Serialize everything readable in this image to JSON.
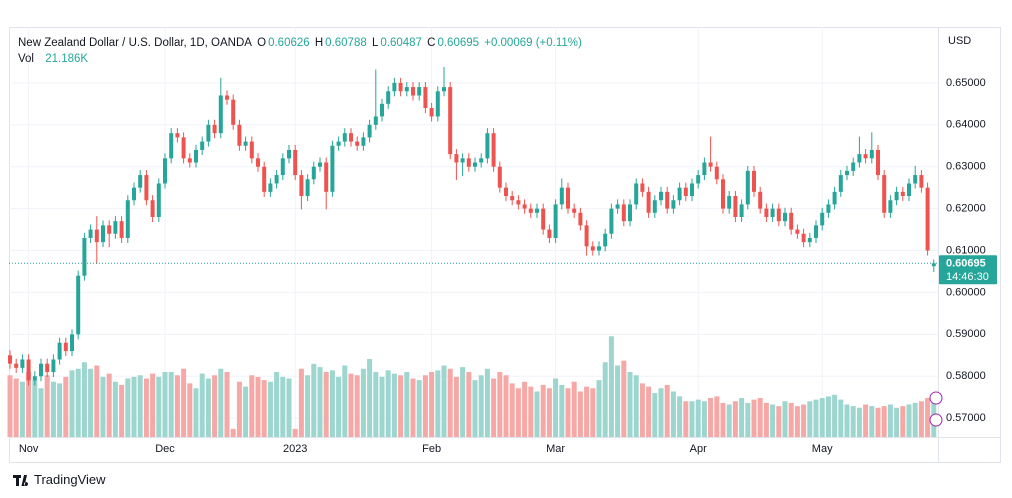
{
  "chart_data": {
    "type": "candlestick",
    "symbol": "New Zealand Dollar / U.S. Dollar, 1D, OANDA",
    "o_label": "O",
    "h_label": "H",
    "l_label": "L",
    "c_label": "C",
    "change": "+0.00069 (+0.11%)",
    "volume_name": "Vol",
    "volume_last_label": "21.186K",
    "currency": "USD",
    "countdown": "14:46:30",
    "brand": "TradingView",
    "up_color": "#26a69a",
    "down_color": "#ef5350",
    "volume_up_color": "#9dd5cf",
    "volume_down_color": "#f5a8a6",
    "ylim": [
      0.5655,
      0.6631
    ],
    "yticks": [
      {
        "value": 0.57,
        "label": "0.57000"
      },
      {
        "value": 0.58,
        "label": "0.58000"
      },
      {
        "value": 0.59,
        "label": "0.59000"
      },
      {
        "value": 0.6,
        "label": "0.60000"
      },
      {
        "value": 0.61,
        "label": "0.61000"
      },
      {
        "value": 0.62,
        "label": "0.62000"
      },
      {
        "value": 0.63,
        "label": "0.63000"
      },
      {
        "value": 0.64,
        "label": "0.64000"
      },
      {
        "value": 0.65,
        "label": "0.65000"
      }
    ],
    "xticks": [
      {
        "value": 3,
        "label": "Nov"
      },
      {
        "value": 25,
        "label": "Dec"
      },
      {
        "value": 46,
        "label": "2023"
      },
      {
        "value": 68,
        "label": "Feb"
      },
      {
        "value": 88,
        "label": "Mar"
      },
      {
        "value": 111,
        "label": "Apr"
      },
      {
        "value": 131,
        "label": "May"
      }
    ],
    "grid": true,
    "volume_ylim": [
      0,
      80
    ],
    "ohlc": [
      [
        0.585,
        0.5862,
        0.5818,
        0.583
      ],
      [
        0.583,
        0.5842,
        0.5808,
        0.582
      ],
      [
        0.582,
        0.5852,
        0.5808,
        0.584
      ],
      [
        0.584,
        0.5852,
        0.5778,
        0.579
      ],
      [
        0.579,
        0.5812,
        0.5778,
        0.58
      ],
      [
        0.58,
        0.5842,
        0.5788,
        0.583
      ],
      [
        0.583,
        0.5842,
        0.5798,
        0.581
      ],
      [
        0.581,
        0.5852,
        0.5798,
        0.584
      ],
      [
        0.584,
        0.5892,
        0.5828,
        0.588
      ],
      [
        0.588,
        0.5892,
        0.5848,
        0.586
      ],
      [
        0.586,
        0.5912,
        0.5848,
        0.59
      ],
      [
        0.59,
        0.6052,
        0.5888,
        0.604
      ],
      [
        0.604,
        0.6142,
        0.6028,
        0.613
      ],
      [
        0.613,
        0.6162,
        0.6118,
        0.615
      ],
      [
        0.615,
        0.6182,
        0.6068,
        0.612
      ],
      [
        0.612,
        0.6172,
        0.6108,
        0.616
      ],
      [
        0.616,
        0.6172,
        0.6108,
        0.614
      ],
      [
        0.614,
        0.6182,
        0.6128,
        0.617
      ],
      [
        0.617,
        0.6182,
        0.6118,
        0.613
      ],
      [
        0.613,
        0.6232,
        0.6118,
        0.622
      ],
      [
        0.622,
        0.6262,
        0.6208,
        0.625
      ],
      [
        0.625,
        0.6292,
        0.6238,
        0.628
      ],
      [
        0.628,
        0.6292,
        0.6208,
        0.622
      ],
      [
        0.622,
        0.6232,
        0.6168,
        0.618
      ],
      [
        0.618,
        0.6272,
        0.6168,
        0.626
      ],
      [
        0.626,
        0.6332,
        0.6248,
        0.632
      ],
      [
        0.632,
        0.6392,
        0.6308,
        0.638
      ],
      [
        0.638,
        0.6392,
        0.6358,
        0.637
      ],
      [
        0.637,
        0.6382,
        0.6308,
        0.632
      ],
      [
        0.632,
        0.6332,
        0.6298,
        0.631
      ],
      [
        0.631,
        0.6352,
        0.6298,
        0.634
      ],
      [
        0.634,
        0.6372,
        0.6328,
        0.636
      ],
      [
        0.636,
        0.6412,
        0.6348,
        0.64
      ],
      [
        0.64,
        0.6412,
        0.6368,
        0.638
      ],
      [
        0.638,
        0.6512,
        0.6368,
        0.647
      ],
      [
        0.647,
        0.6482,
        0.6448,
        0.646
      ],
      [
        0.646,
        0.6472,
        0.6388,
        0.64
      ],
      [
        0.64,
        0.6412,
        0.6338,
        0.635
      ],
      [
        0.635,
        0.6372,
        0.6338,
        0.636
      ],
      [
        0.636,
        0.6372,
        0.6308,
        0.632
      ],
      [
        0.632,
        0.6332,
        0.6288,
        0.63
      ],
      [
        0.63,
        0.6312,
        0.6228,
        0.624
      ],
      [
        0.624,
        0.6272,
        0.6228,
        0.626
      ],
      [
        0.626,
        0.6292,
        0.6248,
        0.628
      ],
      [
        0.628,
        0.6332,
        0.6268,
        0.632
      ],
      [
        0.632,
        0.6352,
        0.6308,
        0.634
      ],
      [
        0.634,
        0.6352,
        0.6268,
        0.628
      ],
      [
        0.628,
        0.6292,
        0.6198,
        0.623
      ],
      [
        0.623,
        0.6282,
        0.6218,
        0.627
      ],
      [
        0.627,
        0.6312,
        0.6258,
        0.63
      ],
      [
        0.63,
        0.6322,
        0.6288,
        0.631
      ],
      [
        0.631,
        0.6322,
        0.6198,
        0.624
      ],
      [
        0.624,
        0.6362,
        0.6228,
        0.635
      ],
      [
        0.635,
        0.6372,
        0.6338,
        0.636
      ],
      [
        0.636,
        0.6392,
        0.6348,
        0.638
      ],
      [
        0.638,
        0.6392,
        0.6348,
        0.636
      ],
      [
        0.636,
        0.6372,
        0.6338,
        0.635
      ],
      [
        0.635,
        0.6382,
        0.6338,
        0.637
      ],
      [
        0.637,
        0.6412,
        0.6358,
        0.64
      ],
      [
        0.64,
        0.6532,
        0.6388,
        0.642
      ],
      [
        0.642,
        0.6462,
        0.6408,
        0.645
      ],
      [
        0.645,
        0.6492,
        0.6438,
        0.648
      ],
      [
        0.648,
        0.6512,
        0.6468,
        0.65
      ],
      [
        0.65,
        0.6512,
        0.6468,
        0.648
      ],
      [
        0.648,
        0.6502,
        0.6468,
        0.649
      ],
      [
        0.649,
        0.6502,
        0.6458,
        0.647
      ],
      [
        0.647,
        0.6502,
        0.6458,
        0.649
      ],
      [
        0.649,
        0.6502,
        0.6428,
        0.644
      ],
      [
        0.644,
        0.6452,
        0.6408,
        0.642
      ],
      [
        0.642,
        0.6492,
        0.6408,
        0.648
      ],
      [
        0.648,
        0.6538,
        0.6468,
        0.649
      ],
      [
        0.649,
        0.6502,
        0.6318,
        0.633
      ],
      [
        0.633,
        0.6342,
        0.6268,
        0.631
      ],
      [
        0.631,
        0.6332,
        0.6278,
        0.632
      ],
      [
        0.632,
        0.6332,
        0.6288,
        0.63
      ],
      [
        0.63,
        0.6322,
        0.6288,
        0.631
      ],
      [
        0.631,
        0.6332,
        0.6298,
        0.632
      ],
      [
        0.632,
        0.6392,
        0.6308,
        0.638
      ],
      [
        0.638,
        0.6392,
        0.6288,
        0.63
      ],
      [
        0.63,
        0.6312,
        0.6238,
        0.625
      ],
      [
        0.625,
        0.6262,
        0.6218,
        0.623
      ],
      [
        0.623,
        0.6242,
        0.6208,
        0.622
      ],
      [
        0.622,
        0.6232,
        0.6198,
        0.621
      ],
      [
        0.621,
        0.6222,
        0.6188,
        0.62
      ],
      [
        0.62,
        0.6212,
        0.6178,
        0.619
      ],
      [
        0.619,
        0.6212,
        0.6178,
        0.62
      ],
      [
        0.62,
        0.6212,
        0.6138,
        0.615
      ],
      [
        0.615,
        0.6162,
        0.6118,
        0.613
      ],
      [
        0.613,
        0.6222,
        0.6118,
        0.621
      ],
      [
        0.621,
        0.6272,
        0.6198,
        0.625
      ],
      [
        0.625,
        0.6262,
        0.6188,
        0.62
      ],
      [
        0.62,
        0.6212,
        0.6178,
        0.619
      ],
      [
        0.619,
        0.6202,
        0.6148,
        0.616
      ],
      [
        0.616,
        0.6172,
        0.6088,
        0.611
      ],
      [
        0.611,
        0.6122,
        0.6088,
        0.61
      ],
      [
        0.61,
        0.6122,
        0.6088,
        0.611
      ],
      [
        0.611,
        0.6152,
        0.6098,
        0.614
      ],
      [
        0.614,
        0.6212,
        0.6128,
        0.62
      ],
      [
        0.62,
        0.6222,
        0.6188,
        0.621
      ],
      [
        0.621,
        0.6222,
        0.6158,
        0.617
      ],
      [
        0.617,
        0.6222,
        0.6158,
        0.621
      ],
      [
        0.621,
        0.6272,
        0.6198,
        0.626
      ],
      [
        0.626,
        0.6272,
        0.6228,
        0.624
      ],
      [
        0.624,
        0.6252,
        0.6178,
        0.619
      ],
      [
        0.619,
        0.6232,
        0.6178,
        0.622
      ],
      [
        0.622,
        0.6252,
        0.6208,
        0.624
      ],
      [
        0.624,
        0.6252,
        0.6188,
        0.62
      ],
      [
        0.62,
        0.6232,
        0.6188,
        0.622
      ],
      [
        0.622,
        0.6262,
        0.6208,
        0.625
      ],
      [
        0.625,
        0.6262,
        0.6218,
        0.623
      ],
      [
        0.623,
        0.6272,
        0.6218,
        0.626
      ],
      [
        0.626,
        0.6292,
        0.6248,
        0.628
      ],
      [
        0.628,
        0.6322,
        0.6268,
        0.631
      ],
      [
        0.631,
        0.6372,
        0.6288,
        0.63
      ],
      [
        0.63,
        0.6312,
        0.6258,
        0.627
      ],
      [
        0.627,
        0.6282,
        0.6188,
        0.62
      ],
      [
        0.62,
        0.6242,
        0.6188,
        0.623
      ],
      [
        0.623,
        0.6242,
        0.6168,
        0.618
      ],
      [
        0.618,
        0.6222,
        0.6168,
        0.621
      ],
      [
        0.621,
        0.6302,
        0.6198,
        0.629
      ],
      [
        0.629,
        0.6302,
        0.6228,
        0.624
      ],
      [
        0.624,
        0.6252,
        0.6188,
        0.62
      ],
      [
        0.62,
        0.6212,
        0.6168,
        0.618
      ],
      [
        0.618,
        0.6212,
        0.6168,
        0.62
      ],
      [
        0.62,
        0.6212,
        0.6158,
        0.617
      ],
      [
        0.617,
        0.6202,
        0.6158,
        0.619
      ],
      [
        0.619,
        0.6202,
        0.6138,
        0.615
      ],
      [
        0.615,
        0.6162,
        0.6128,
        0.614
      ],
      [
        0.614,
        0.6152,
        0.6108,
        0.612
      ],
      [
        0.612,
        0.6142,
        0.6108,
        0.613
      ],
      [
        0.613,
        0.6172,
        0.6118,
        0.616
      ],
      [
        0.616,
        0.6202,
        0.6148,
        0.619
      ],
      [
        0.619,
        0.6222,
        0.6178,
        0.621
      ],
      [
        0.621,
        0.6252,
        0.6198,
        0.624
      ],
      [
        0.624,
        0.6292,
        0.6228,
        0.628
      ],
      [
        0.628,
        0.6302,
        0.6268,
        0.629
      ],
      [
        0.629,
        0.6322,
        0.6278,
        0.631
      ],
      [
        0.631,
        0.6372,
        0.6298,
        0.633
      ],
      [
        0.633,
        0.6342,
        0.6308,
        0.632
      ],
      [
        0.632,
        0.6382,
        0.6308,
        0.634
      ],
      [
        0.634,
        0.6352,
        0.6268,
        0.628
      ],
      [
        0.628,
        0.6292,
        0.6178,
        0.619
      ],
      [
        0.619,
        0.6232,
        0.6178,
        0.622
      ],
      [
        0.622,
        0.6252,
        0.6208,
        0.624
      ],
      [
        0.624,
        0.6252,
        0.6218,
        0.623
      ],
      [
        0.623,
        0.6272,
        0.6218,
        0.626
      ],
      [
        0.626,
        0.6302,
        0.6248,
        0.628
      ],
      [
        0.628,
        0.6292,
        0.6238,
        0.625
      ],
      [
        0.625,
        0.6262,
        0.6088,
        0.61
      ],
      [
        0.60626,
        0.60788,
        0.60487,
        0.60695
      ]
    ],
    "volume": [
      38,
      36,
      34,
      40,
      35,
      30,
      38,
      34,
      33,
      37,
      41,
      42,
      46,
      42,
      44,
      37,
      39,
      34,
      32,
      36,
      37,
      38,
      36,
      39,
      37,
      40,
      40,
      38,
      42,
      33,
      30,
      39,
      36,
      38,
      42,
      40,
      5,
      34,
      31,
      38,
      37,
      35,
      34,
      40,
      37,
      36,
      5,
      42,
      38,
      45,
      43,
      40,
      41,
      37,
      44,
      39,
      38,
      42,
      48,
      40,
      37,
      41,
      39,
      38,
      40,
      36,
      35,
      38,
      40,
      41,
      44,
      42,
      37,
      43,
      40,
      35,
      38,
      42,
      36,
      40,
      38,
      33,
      30,
      34,
      31,
      28,
      32,
      30,
      36,
      32,
      30,
      34,
      28,
      31,
      30,
      35,
      46,
      62,
      44,
      47,
      40,
      38,
      33,
      31,
      27,
      30,
      32,
      28,
      25,
      22,
      22,
      23,
      22,
      24,
      25,
      21,
      20,
      22,
      24,
      21,
      23,
      24,
      21,
      20,
      19,
      22,
      21,
      19,
      20,
      22,
      23,
      24,
      25,
      26,
      23,
      20,
      19,
      18,
      20,
      19,
      18,
      19,
      20,
      18,
      19,
      20,
      21,
      22,
      24,
      21.186
    ]
  }
}
